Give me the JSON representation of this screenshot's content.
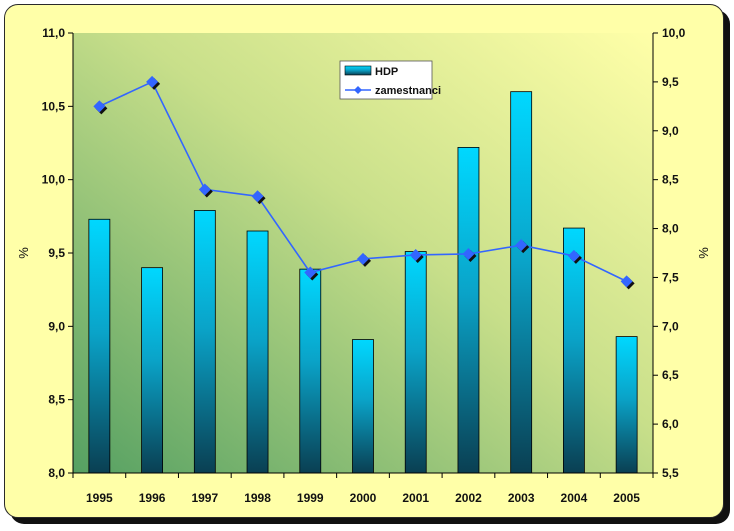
{
  "chart_data": {
    "type": "bar+line",
    "categories": [
      "1995",
      "1996",
      "1997",
      "1998",
      "1999",
      "2000",
      "2001",
      "2002",
      "2003",
      "2004",
      "2005"
    ],
    "series": [
      {
        "name": "HDP",
        "type": "bar",
        "axis": "left",
        "color": "#00ccff",
        "values": [
          9.73,
          9.4,
          9.79,
          9.65,
          9.39,
          8.91,
          9.51,
          10.22,
          10.6,
          9.67,
          8.93
        ]
      },
      {
        "name": "zamestnanci",
        "type": "line",
        "axis": "right",
        "color": "#3366ff",
        "values": [
          9.25,
          9.5,
          8.4,
          8.33,
          7.55,
          7.69,
          7.73,
          7.74,
          7.83,
          7.72,
          7.46
        ]
      }
    ],
    "left_axis": {
      "label": "%",
      "ylim": [
        8.0,
        11.0
      ],
      "ticks": [
        "8,0",
        "8,5",
        "9,0",
        "9,5",
        "10,0",
        "10,5",
        "11,0"
      ]
    },
    "right_axis": {
      "label": "%",
      "ylim": [
        5.5,
        10.0
      ],
      "ticks": [
        "5,5",
        "6,0",
        "6,5",
        "7,0",
        "7,5",
        "8,0",
        "8,5",
        "9,0",
        "9,5",
        "10,0"
      ]
    },
    "grid": false,
    "legend_position": "top-center"
  },
  "colors": {
    "frame_bg": "#ffffa8",
    "plot_gradient_start": "#5aa060",
    "plot_gradient_end": "#ffffa8",
    "bar_light": "#00ccff",
    "bar_dark": "#0b4a5e",
    "line": "#3366ff"
  }
}
